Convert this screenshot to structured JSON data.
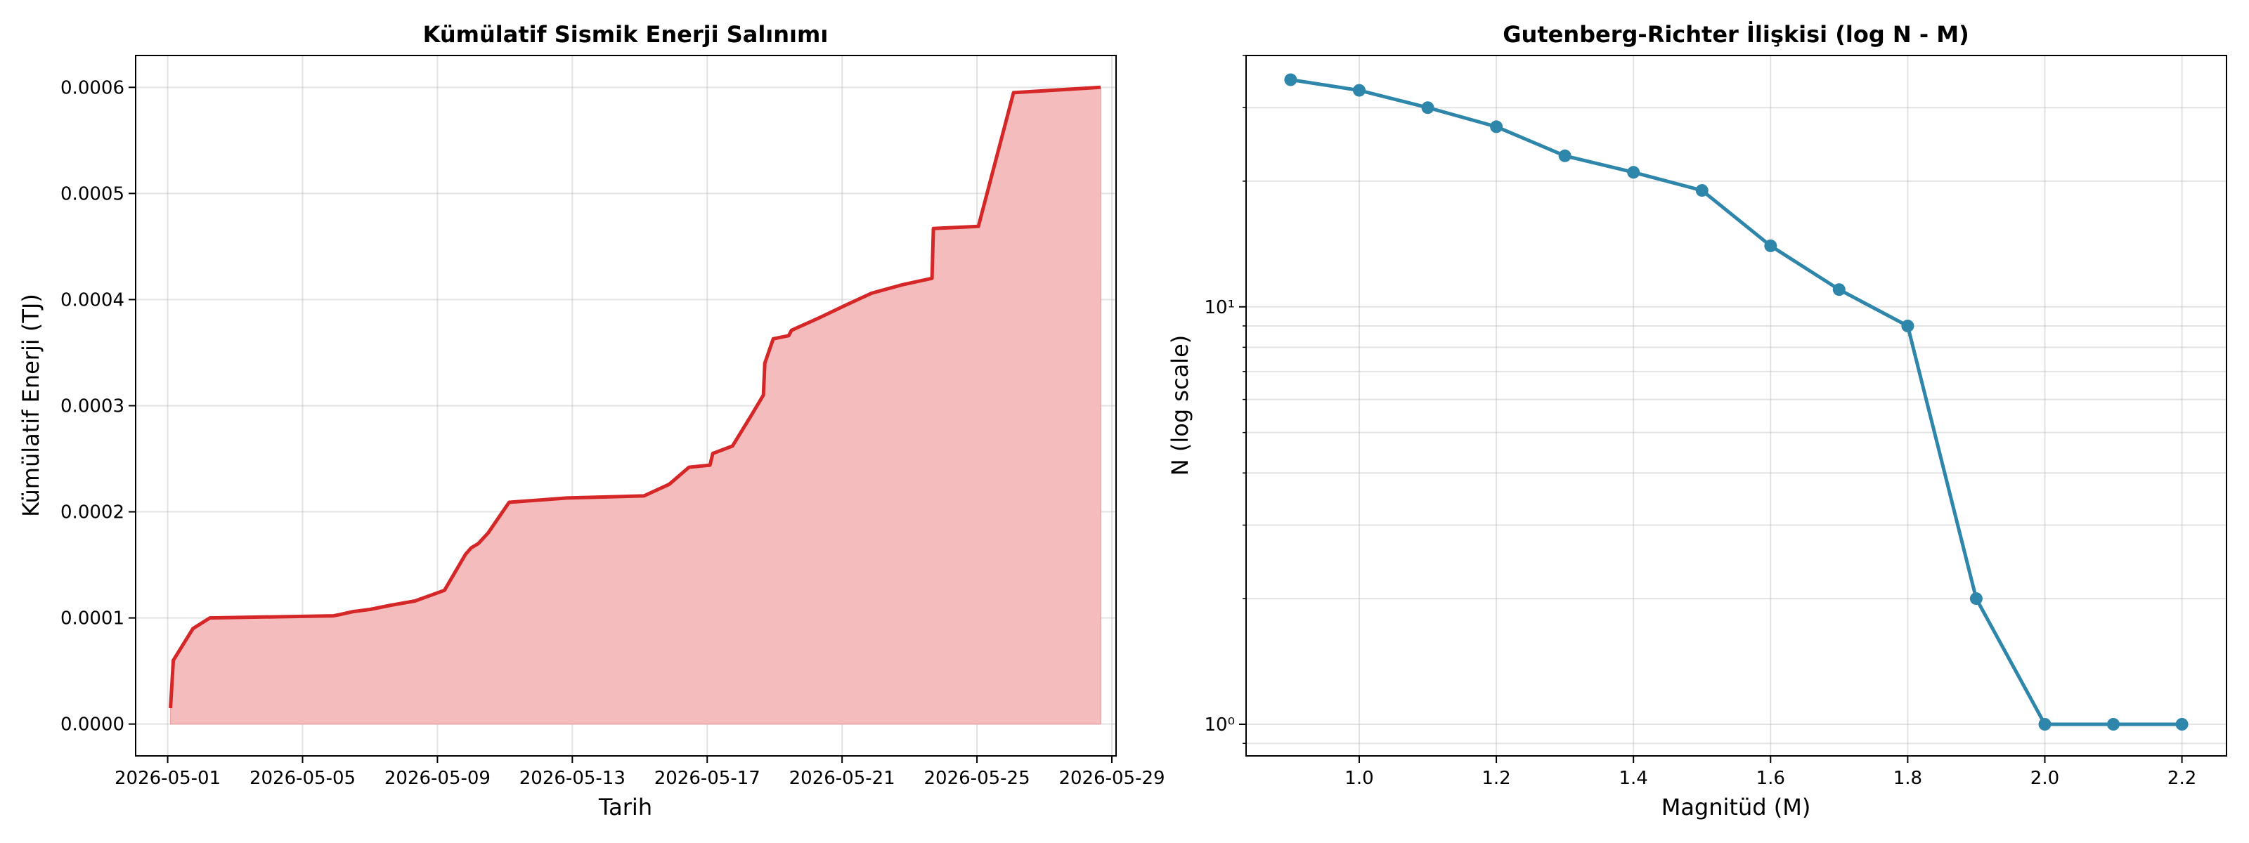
{
  "chart_data": [
    {
      "type": "area",
      "title": "Kümülatif Sismik Enerji Salınımı",
      "xlabel": "Tarih",
      "ylabel": "Kümülatif Enerji (TJ)",
      "x_ticks": [
        "2026-05-01",
        "2026-05-05",
        "2026-05-09",
        "2026-05-13",
        "2026-05-17",
        "2026-05-21",
        "2026-05-25",
        "2026-05-29"
      ],
      "y_ticks": [
        "0.0000",
        "0.0001",
        "0.0002",
        "0.0003",
        "0.0004",
        "0.0005",
        "0.0006"
      ],
      "xlim": [
        "2026-04-30T01:12",
        "2026-05-29T03:00"
      ],
      "ylim": [
        -3e-05,
        0.00063
      ],
      "grid": true,
      "line_color": "#d62728",
      "fill_color": "#f4bcbd",
      "series": [
        {
          "x": [
            "2026-05-01T02:00",
            "2026-05-01T04:00",
            "2026-05-01T18:00",
            "2026-05-02T06:00",
            "2026-05-05T22:00",
            "2026-05-06T02:00",
            "2026-05-06T12:00",
            "2026-05-07T00:00",
            "2026-05-07T15:00",
            "2026-05-08T08:00",
            "2026-05-09T05:00",
            "2026-05-09T20:00",
            "2026-05-10T00:00",
            "2026-05-10T05:00",
            "2026-05-10T12:00",
            "2026-05-11T03:00",
            "2026-05-12T20:00",
            "2026-05-15T03:00",
            "2026-05-15T21:00",
            "2026-05-16T11:00",
            "2026-05-17T02:00",
            "2026-05-17T04:00",
            "2026-05-17T18:00",
            "2026-05-18T07:00",
            "2026-05-18T16:00",
            "2026-05-18T17:00",
            "2026-05-18T23:00",
            "2026-05-19T10:00",
            "2026-05-19T12:00",
            "2026-05-20T08:00",
            "2026-05-21T03:00",
            "2026-05-21T21:00",
            "2026-05-22T19:00",
            "2026-05-23T16:00",
            "2026-05-23T17:00",
            "2026-05-25T01:00",
            "2026-05-26T02:00",
            "2026-05-28T16:00"
          ],
          "values": [
            1.5e-05,
            6e-05,
            9e-05,
            0.0001,
            0.000102,
            0.000103,
            0.000106,
            0.000108,
            0.000112,
            0.000116,
            0.000126,
            0.00016,
            0.000166,
            0.00017,
            0.00018,
            0.000209,
            0.000213,
            0.000215,
            0.000226,
            0.000242,
            0.000244,
            0.000255,
            0.000262,
            0.00029,
            0.00031,
            0.00034,
            0.000363,
            0.000366,
            0.000371,
            0.000383,
            0.000395,
            0.000406,
            0.000414,
            0.00042,
            0.000467,
            0.000469,
            0.000595,
            0.0006
          ]
        }
      ]
    },
    {
      "type": "line",
      "title": "Gutenberg-Richter İlişkisi (log N - M)",
      "xlabel": "Magnitüd (M)",
      "ylabel": "N (log scale)",
      "x_ticks": [
        "1.0",
        "1.2",
        "1.4",
        "1.6",
        "1.8",
        "2.0",
        "2.2"
      ],
      "y_ticks": [
        "10⁰",
        "10¹"
      ],
      "yscale": "log",
      "xlim": [
        0.835,
        2.265
      ],
      "ylim": [
        0.84,
        40
      ],
      "grid": true,
      "marker": "circle",
      "line_color": "#2e86ab",
      "series": [
        {
          "x": [
            0.9,
            1.0,
            1.1,
            1.2,
            1.3,
            1.4,
            1.5,
            1.6,
            1.7,
            1.8,
            1.9,
            2.0,
            2.1,
            2.2
          ],
          "values": [
            35,
            33,
            30,
            27,
            23,
            21,
            19,
            14,
            11,
            9,
            2,
            1,
            1,
            1
          ]
        }
      ]
    }
  ]
}
